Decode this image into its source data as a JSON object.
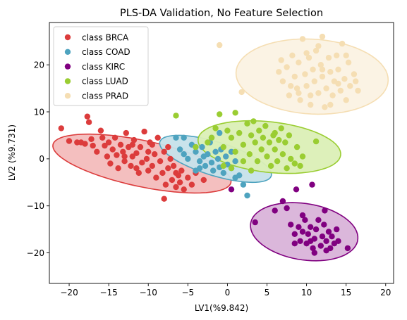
{
  "chart_data": {
    "type": "scatter",
    "title": "PLS-DA Validation, No Feature Selection",
    "xlabel": "LV1(%9.842)",
    "ylabel": "LV2 (%9.731)",
    "xlim": [
      -22.5,
      21
    ],
    "ylim": [
      -26.5,
      29
    ],
    "xticks": [
      -20,
      -15,
      -10,
      -5,
      0,
      5,
      10,
      15,
      20
    ],
    "yticks": [
      -20,
      -10,
      0,
      10,
      20
    ],
    "xtick_labels": [
      "−20",
      "−15",
      "−10",
      "−5",
      "0",
      "5",
      "10",
      "15",
      "20"
    ],
    "ytick_labels": [
      "−20",
      "−10",
      "0",
      "10",
      "20"
    ],
    "grid": false,
    "legend_position": "top-left",
    "series": [
      {
        "name": "class BRCA",
        "color": "#dc3c3c",
        "fill": "#f3bcbc",
        "ellipse": {
          "cx": -10.8,
          "cy": -1.0,
          "rx": 12.0,
          "ry": 4.7,
          "angle": -22
        },
        "points": [
          [
            -21,
            6.5
          ],
          [
            -20,
            3.8
          ],
          [
            -19,
            3.5
          ],
          [
            -18.5,
            3.5
          ],
          [
            -18,
            3.2
          ],
          [
            -17.7,
            9
          ],
          [
            -17.5,
            7.8
          ],
          [
            -17.2,
            4.2
          ],
          [
            -17,
            2.8
          ],
          [
            -16.5,
            1.5
          ],
          [
            -16,
            6
          ],
          [
            -15.8,
            4.5
          ],
          [
            -15.5,
            2.8
          ],
          [
            -15.2,
            0.5
          ],
          [
            -15,
            3.5
          ],
          [
            -14.8,
            -1
          ],
          [
            -14.5,
            2
          ],
          [
            -14.2,
            4.5
          ],
          [
            -14,
            0.8
          ],
          [
            -13.8,
            -2
          ],
          [
            -13.5,
            3
          ],
          [
            -13.2,
            1.5
          ],
          [
            -13,
            -0.5
          ],
          [
            -12.8,
            5.5
          ],
          [
            -12.5,
            2.5
          ],
          [
            -12.2,
            -1.5
          ],
          [
            -12,
            0.5
          ],
          [
            -11.8,
            4
          ],
          [
            -11.5,
            1.2
          ],
          [
            -11.2,
            -3
          ],
          [
            -11,
            2.5
          ],
          [
            -10.8,
            -0.8
          ],
          [
            -10.5,
            5.8
          ],
          [
            -10.2,
            0
          ],
          [
            -10,
            -2.5
          ],
          [
            -9.8,
            3.5
          ],
          [
            -9.5,
            -1.5
          ],
          [
            -9.2,
            1
          ],
          [
            -9,
            -4
          ],
          [
            -8.8,
            4.5
          ],
          [
            -8.5,
            -0.5
          ],
          [
            -8.2,
            -3
          ],
          [
            -8,
            1.5
          ],
          [
            -7.8,
            -5.5
          ],
          [
            -7.5,
            -2
          ],
          [
            -7.2,
            0
          ],
          [
            -7,
            -4.5
          ],
          [
            -6.8,
            -1.5
          ],
          [
            -6.5,
            -6
          ],
          [
            -6.2,
            -3.5
          ],
          [
            -6,
            -5
          ],
          [
            -5.8,
            -2.5
          ],
          [
            -5.5,
            -6.5
          ],
          [
            -5,
            -4
          ],
          [
            -4.5,
            -5.5
          ],
          [
            -4,
            -3
          ],
          [
            -3,
            -4.5
          ],
          [
            -8,
            -8.5
          ],
          [
            -9.5,
            3
          ],
          [
            -11.5,
            -2
          ],
          [
            -13,
            0.5
          ],
          [
            -10,
            1.5
          ],
          [
            -12,
            3
          ],
          [
            -7.5,
            2.5
          ],
          [
            -6.5,
            -3
          ]
        ]
      },
      {
        "name": "class COAD",
        "color": "#4ea3bf",
        "fill": "#c6e2ea",
        "ellipse": {
          "cx": -1.5,
          "cy": 0.0,
          "rx": 8.0,
          "ry": 3.3,
          "angle": -31
        },
        "points": [
          [
            -6.5,
            4.5
          ],
          [
            -6,
            2
          ],
          [
            -5.5,
            1
          ],
          [
            -5,
            0
          ],
          [
            -4.5,
            3
          ],
          [
            -4,
            1.5
          ],
          [
            -3.5,
            -0.5
          ],
          [
            -3.2,
            2.5
          ],
          [
            -3,
            0.5
          ],
          [
            -2.8,
            -1.5
          ],
          [
            -2.5,
            1
          ],
          [
            -2.2,
            3.5
          ],
          [
            -2,
            -0.8
          ],
          [
            -1.8,
            -2.5
          ],
          [
            -1.5,
            1.5
          ],
          [
            -1.2,
            0
          ],
          [
            -1,
            -1.8
          ],
          [
            -0.8,
            2
          ],
          [
            -0.5,
            -3
          ],
          [
            -0.2,
            0.5
          ],
          [
            0,
            -1.2
          ],
          [
            0.5,
            -2
          ],
          [
            1,
            -0.5
          ],
          [
            1.5,
            -3.5
          ],
          [
            2,
            -5.5
          ],
          [
            2.5,
            -7.8
          ],
          [
            -4,
            -2.5
          ],
          [
            -2,
            4.5
          ],
          [
            -1,
            5.5
          ],
          [
            0.5,
            1.5
          ],
          [
            -3.5,
            -2
          ],
          [
            -5.5,
            4.5
          ],
          [
            1,
            -4
          ]
        ]
      },
      {
        "name": "class KIRC",
        "color": "#800080",
        "fill": "#d9b3d9",
        "ellipse": {
          "cx": 9.7,
          "cy": -15.5,
          "rx": 7.2,
          "ry": 5.7,
          "angle": -33
        },
        "points": [
          [
            3.5,
            -13.5
          ],
          [
            6,
            -11
          ],
          [
            7,
            -9
          ],
          [
            7.5,
            -10.5
          ],
          [
            8,
            -14
          ],
          [
            8.5,
            -16
          ],
          [
            9,
            -14.5
          ],
          [
            9.2,
            -17.5
          ],
          [
            9.5,
            -15.5
          ],
          [
            9.8,
            -13
          ],
          [
            10,
            -18
          ],
          [
            10.2,
            -16
          ],
          [
            10.5,
            -14.5
          ],
          [
            10.8,
            -19
          ],
          [
            11,
            -17
          ],
          [
            11.2,
            -15
          ],
          [
            11.5,
            -13
          ],
          [
            11.8,
            -18.5
          ],
          [
            12,
            -16.5
          ],
          [
            12.2,
            -14
          ],
          [
            12.5,
            -17.5
          ],
          [
            12.8,
            -15.5
          ],
          [
            13,
            -19
          ],
          [
            13.2,
            -16.5
          ],
          [
            13.5,
            -18
          ],
          [
            13.8,
            -15
          ],
          [
            14,
            -17.5
          ],
          [
            15.2,
            -19
          ],
          [
            8.7,
            -6.5
          ],
          [
            10.7,
            -5.5
          ],
          [
            0.5,
            -6.5
          ],
          [
            9.5,
            -12
          ],
          [
            11,
            -20
          ],
          [
            12.3,
            -11
          ],
          [
            8.5,
            -18
          ],
          [
            10.5,
            -17.5
          ],
          [
            12.5,
            -19.5
          ]
        ]
      },
      {
        "name": "class LUAD",
        "color": "#9acd32",
        "fill": "#dbefb6",
        "ellipse": {
          "cx": 5.3,
          "cy": 2.5,
          "rx": 9.2,
          "ry": 5.3,
          "angle": -14
        },
        "points": [
          [
            -6.5,
            9.2
          ],
          [
            -4,
            2.5
          ],
          [
            -2,
            4.5
          ],
          [
            -1.5,
            6.5
          ],
          [
            -1,
            9.5
          ],
          [
            -0.5,
            2.5
          ],
          [
            0,
            6
          ],
          [
            0.5,
            4.5
          ],
          [
            1,
            9.8
          ],
          [
            1.5,
            5.5
          ],
          [
            2,
            3
          ],
          [
            2.5,
            7.5
          ],
          [
            2.8,
            1
          ],
          [
            3,
            5
          ],
          [
            3.3,
            8
          ],
          [
            3.5,
            3.5
          ],
          [
            3.8,
            -0.5
          ],
          [
            4,
            6
          ],
          [
            4.3,
            2
          ],
          [
            4.5,
            4.5
          ],
          [
            4.8,
            7
          ],
          [
            5,
            0.5
          ],
          [
            5.3,
            3.5
          ],
          [
            5.5,
            -1.5
          ],
          [
            5.8,
            5
          ],
          [
            6,
            2
          ],
          [
            6.3,
            -0.5
          ],
          [
            6.5,
            4
          ],
          [
            6.8,
            6.5
          ],
          [
            7,
            1
          ],
          [
            7.3,
            3.5
          ],
          [
            7.5,
            -2
          ],
          [
            7.8,
            5
          ],
          [
            8,
            0
          ],
          [
            8.5,
            -1
          ],
          [
            8.8,
            2.5
          ],
          [
            9.2,
            -1.5
          ],
          [
            9.5,
            0.5
          ],
          [
            11.2,
            3.7
          ],
          [
            0.5,
            -2
          ],
          [
            1,
            1.5
          ],
          [
            2,
            -0.5
          ],
          [
            -2.5,
            3.5
          ],
          [
            3,
            -2.5
          ],
          [
            6,
            5.5
          ],
          [
            -0.5,
            -1.5
          ]
        ]
      },
      {
        "name": "class PRAD",
        "color": "#f5deb3",
        "fill": "#fbf2e3",
        "ellipse": {
          "cx": 10.7,
          "cy": 17.5,
          "rx": 9.7,
          "ry": 7.9,
          "angle": -13
        },
        "points": [
          [
            -1,
            24.2
          ],
          [
            1.8,
            14.2
          ],
          [
            6.5,
            18.5
          ],
          [
            6.8,
            21
          ],
          [
            7,
            16.5
          ],
          [
            7.5,
            19.5
          ],
          [
            7.8,
            13.5
          ],
          [
            8.2,
            22
          ],
          [
            8.5,
            17.5
          ],
          [
            8.8,
            15
          ],
          [
            9,
            20.5
          ],
          [
            9.2,
            12.5
          ],
          [
            9.5,
            25.5
          ],
          [
            9.8,
            18
          ],
          [
            10,
            15.5
          ],
          [
            10.3,
            21.5
          ],
          [
            10.5,
            13.5
          ],
          [
            10.8,
            19
          ],
          [
            11,
            16.5
          ],
          [
            11.2,
            23
          ],
          [
            11.5,
            14
          ],
          [
            11.8,
            20
          ],
          [
            12,
            17.5
          ],
          [
            12.3,
            11
          ],
          [
            12.5,
            15
          ],
          [
            12.8,
            21.5
          ],
          [
            13,
            18.5
          ],
          [
            13.3,
            13.5
          ],
          [
            13.5,
            16.5
          ],
          [
            13.8,
            22
          ],
          [
            14,
            19
          ],
          [
            14.3,
            14.5
          ],
          [
            14.5,
            24.5
          ],
          [
            14.8,
            17
          ],
          [
            15,
            12.5
          ],
          [
            15.3,
            20.5
          ],
          [
            15.5,
            15.5
          ],
          [
            16,
            18
          ],
          [
            16.5,
            14.5
          ],
          [
            12,
            26
          ],
          [
            10.5,
            11.5
          ],
          [
            9,
            14
          ],
          [
            11.5,
            24
          ],
          [
            13,
            11.5
          ],
          [
            14,
            16
          ],
          [
            8,
            15.5
          ],
          [
            10,
            22.5
          ],
          [
            12,
            19
          ],
          [
            15,
            22
          ],
          [
            16.2,
            16.5
          ]
        ]
      }
    ]
  }
}
